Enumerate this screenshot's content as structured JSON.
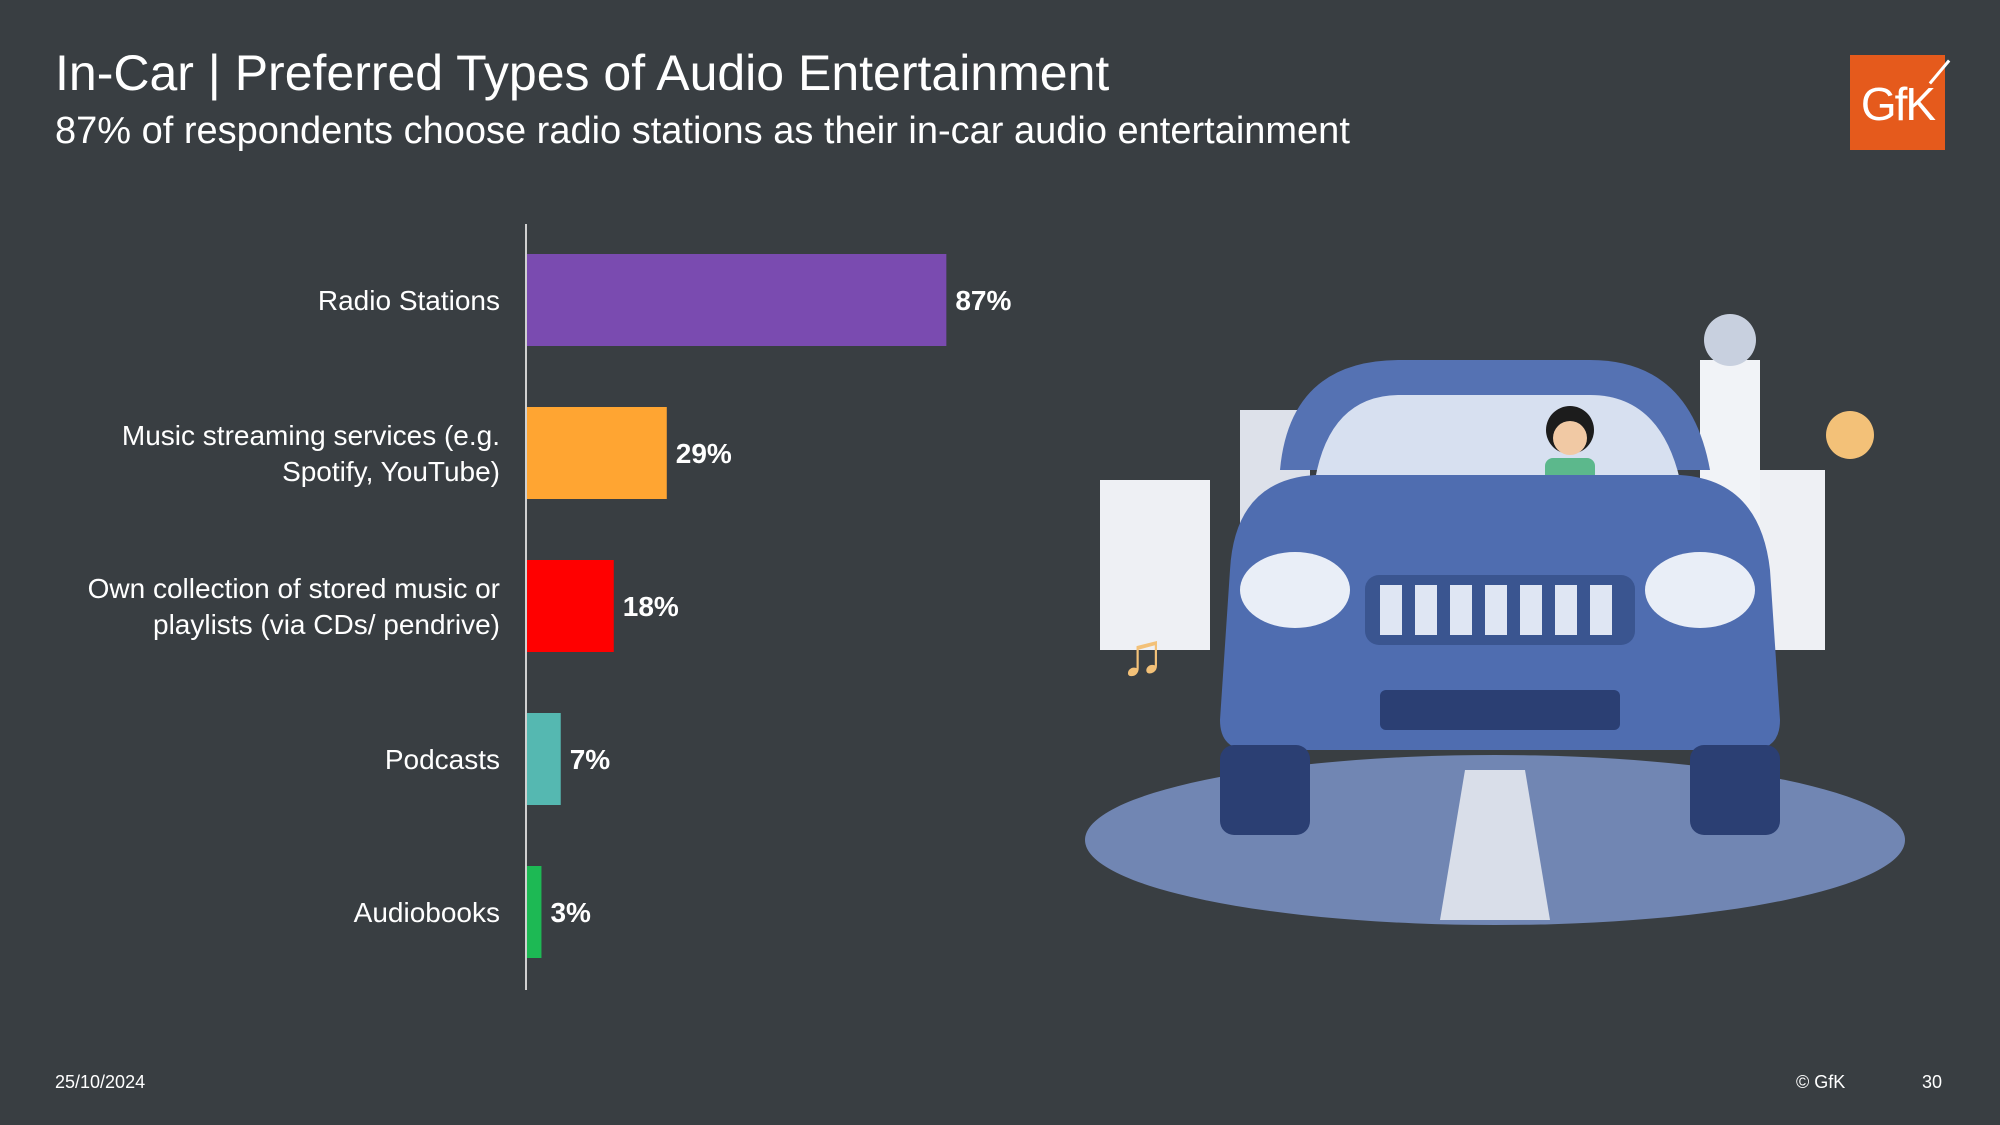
{
  "title": "In-Car | Preferred Types of Audio Entertainment",
  "subtitle": "87% of respondents choose radio stations as their in-car audio entertainment",
  "logo": {
    "text": "GfK"
  },
  "footer": {
    "date": "25/10/2024",
    "copyright": "© GfK",
    "page": "30"
  },
  "colors": {
    "background": "#393e42",
    "accent": "#e55a1c"
  },
  "chart_data": {
    "type": "bar",
    "orientation": "horizontal",
    "title": "",
    "xlabel": "",
    "ylabel": "",
    "xlim": [
      0,
      100
    ],
    "grid": false,
    "categories": [
      [
        "Radio Stations"
      ],
      [
        "Music streaming services (e.g.",
        "Spotify, YouTube)"
      ],
      [
        "Own collection of stored music or",
        "playlists (via CDs/ pendrive)"
      ],
      [
        "Podcasts"
      ],
      [
        "Audiobooks"
      ]
    ],
    "values": [
      87,
      29,
      18,
      7,
      3
    ],
    "value_labels": [
      "87%",
      "29%",
      "18%",
      "7%",
      "3%"
    ],
    "bar_colors": [
      "#7a4bb0",
      "#ffa532",
      "#ff0000",
      "#55b8b1",
      "#1db954"
    ]
  }
}
